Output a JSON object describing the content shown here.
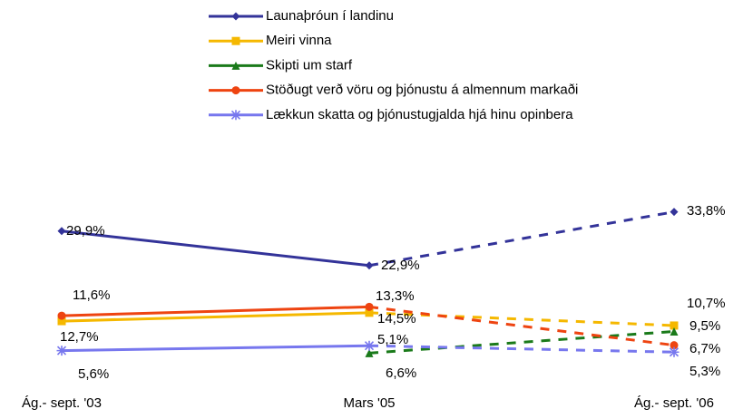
{
  "chart_data": {
    "type": "line",
    "categories": [
      "Ág.- sept. '03",
      "Mars '05",
      "Ág.- sept. '06"
    ],
    "ylim": [
      0,
      40
    ],
    "series": [
      {
        "name": "Launaþróun í landinu",
        "color": "#333399",
        "marker": "diamond",
        "values": [
          29.9,
          22.9,
          33.8
        ],
        "value_labels": [
          "29,9%",
          "22,9%",
          "33,8%"
        ]
      },
      {
        "name": "Meiri vinna",
        "color": "#f5b800",
        "marker": "square",
        "values": [
          11.6,
          13.3,
          10.7
        ],
        "value_labels": [
          "11,6%",
          "13,3%",
          "10,7%"
        ]
      },
      {
        "name": "Skipti um starf",
        "color": "#1a7a1a",
        "marker": "triangle",
        "values": [
          null,
          5.1,
          9.5
        ],
        "value_labels": [
          null,
          "5,1%",
          "9,5%"
        ]
      },
      {
        "name": "Stöðugt verð vöru og þjónustu á almennum markaði",
        "color": "#ee4411",
        "marker": "circle",
        "values": [
          12.7,
          14.5,
          6.7
        ],
        "value_labels": [
          "12,7%",
          "14,5%",
          "6,7%"
        ]
      },
      {
        "name": "Lækkun skatta og þjónustugjalda hjá hinu opinbera",
        "color": "#7777ee",
        "marker": "asterisk",
        "values": [
          5.6,
          6.6,
          5.3
        ],
        "value_labels": [
          "5,6%",
          "6,6%",
          "5,3%"
        ]
      }
    ]
  }
}
